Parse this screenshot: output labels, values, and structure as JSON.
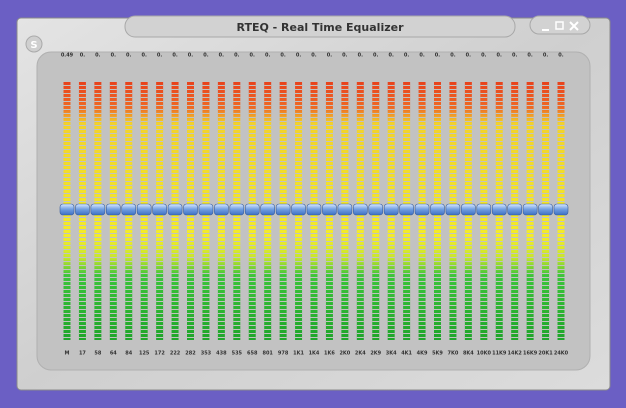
{
  "window": {
    "title": "RTEQ - Real Time Equalizer",
    "button": "S"
  },
  "bands": [
    {
      "top": "0.49",
      "label": "M"
    },
    {
      "top": "0.",
      "label": "17"
    },
    {
      "top": "0.",
      "label": "58"
    },
    {
      "top": "0.",
      "label": "64"
    },
    {
      "top": "0.",
      "label": "84"
    },
    {
      "top": "0.",
      "label": "125"
    },
    {
      "top": "0.",
      "label": "172"
    },
    {
      "top": "0.",
      "label": "222"
    },
    {
      "top": "0.",
      "label": "282"
    },
    {
      "top": "0.",
      "label": "353"
    },
    {
      "top": "0.",
      "label": "438"
    },
    {
      "top": "0.",
      "label": "535"
    },
    {
      "top": "0.",
      "label": "658"
    },
    {
      "top": "0.",
      "label": "801"
    },
    {
      "top": "0.",
      "label": "978"
    },
    {
      "top": "0.",
      "label": "1K1"
    },
    {
      "top": "0.",
      "label": "1K4"
    },
    {
      "top": "0.",
      "label": "1K6"
    },
    {
      "top": "0.",
      "label": "2K0"
    },
    {
      "top": "0.",
      "label": "2K4"
    },
    {
      "top": "0.",
      "label": "2K9"
    },
    {
      "top": "0.",
      "label": "3K4"
    },
    {
      "top": "0.",
      "label": "4K1"
    },
    {
      "top": "0.",
      "label": "4K9"
    },
    {
      "top": "0.",
      "label": "5K9"
    },
    {
      "top": "0.",
      "label": "7K0"
    },
    {
      "top": "0.",
      "label": "8K4"
    },
    {
      "top": "0.",
      "label": "10K0"
    },
    {
      "top": "0.",
      "label": "11K9"
    },
    {
      "top": "0.",
      "label": "14K2"
    },
    {
      "top": "0.",
      "label": "16K9"
    },
    {
      "top": "0.",
      "label": "20K1"
    },
    {
      "top": "0.",
      "label": "24K0"
    }
  ]
}
